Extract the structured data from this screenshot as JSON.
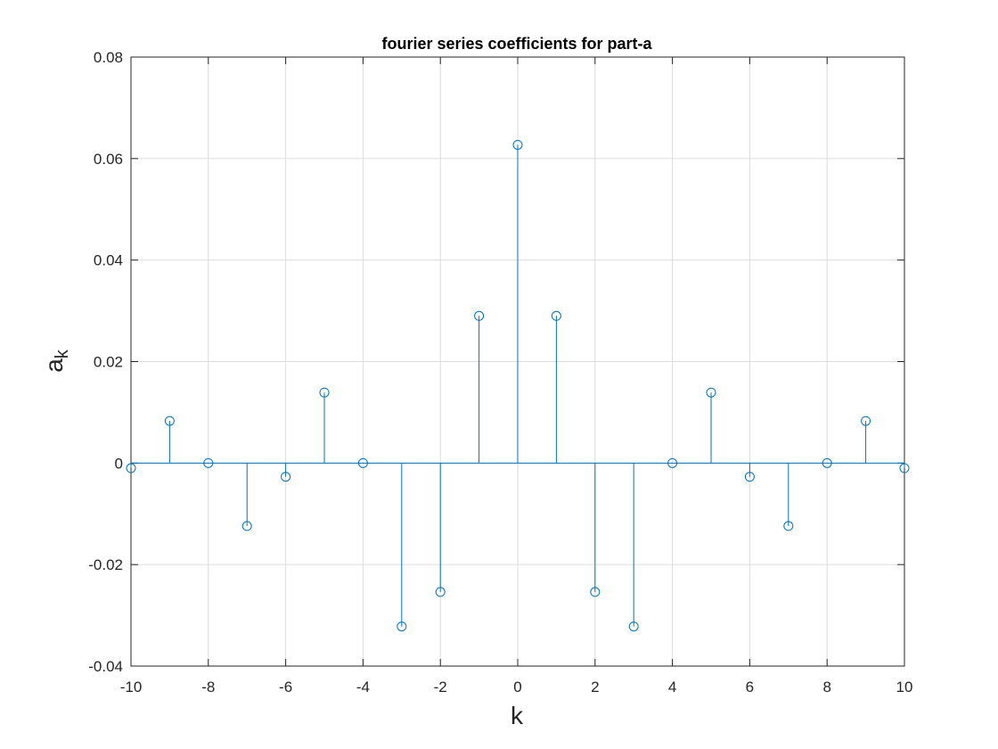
{
  "chart_data": {
    "type": "stem",
    "title": "fourier series coefficients for part-a",
    "xlabel": "k",
    "ylabel_main": "a",
    "ylabel_sub": "k",
    "xlim": [
      -10,
      10
    ],
    "ylim": [
      -0.04,
      0.08
    ],
    "xticks": [
      -10,
      -8,
      -6,
      -4,
      -2,
      0,
      2,
      4,
      6,
      8,
      10
    ],
    "yticks": [
      -0.04,
      -0.02,
      0,
      0.02,
      0.04,
      0.06,
      0.08
    ],
    "xtick_labels": [
      "-10",
      "-8",
      "-6",
      "-4",
      "-2",
      "0",
      "2",
      "4",
      "6",
      "8",
      "10"
    ],
    "ytick_labels": [
      "-0.04",
      "-0.02",
      "0",
      "0.02",
      "0.04",
      "0.06",
      "0.08"
    ],
    "grid": true,
    "x": [
      -10,
      -9,
      -8,
      -7,
      -6,
      -5,
      -4,
      -3,
      -2,
      -1,
      0,
      1,
      2,
      3,
      4,
      5,
      6,
      7,
      8,
      9,
      10
    ],
    "y": [
      -0.001,
      0.0083,
      0.0,
      -0.0124,
      -0.0027,
      0.0139,
      0.0,
      -0.0322,
      -0.0254,
      0.029,
      0.0627,
      0.029,
      -0.0254,
      -0.0322,
      0.0,
      0.0139,
      -0.0027,
      -0.0124,
      0.0,
      0.0083,
      -0.001
    ],
    "series_color": "#0072BD",
    "grid_color": "#dcdcdc",
    "axis_color": "#262626"
  }
}
